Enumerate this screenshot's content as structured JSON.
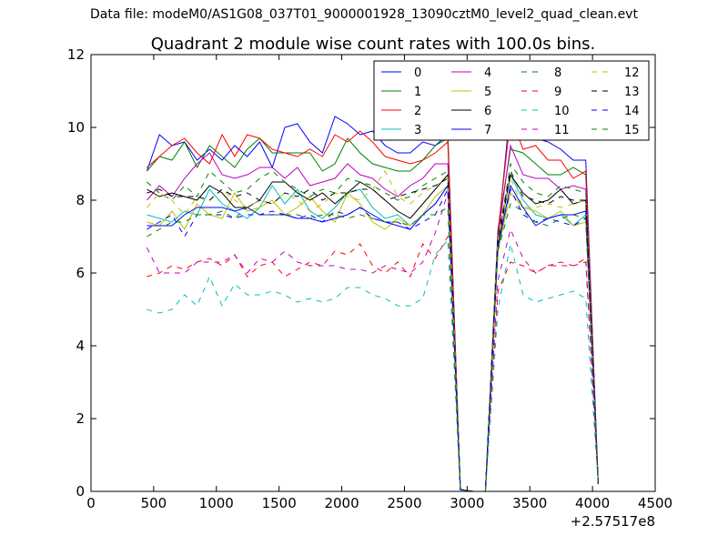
{
  "suptitle": "Data file: modeM0/AS1G08_037T01_9000001928_13090cztM0_level2_quad_clean.evt",
  "chart_data": {
    "type": "line",
    "title": "Quadrant 2 module wise count rates with 100.0s bins.",
    "xlabel": "",
    "ylabel": "",
    "x_offset_label": "+2.57517e8",
    "xlim": [
      0,
      4500
    ],
    "ylim": [
      0,
      12
    ],
    "xticks": [
      0,
      500,
      1000,
      1500,
      2000,
      2500,
      3000,
      3500,
      4000,
      4500
    ],
    "yticks": [
      0,
      2,
      4,
      6,
      8,
      10,
      12
    ],
    "grid": false,
    "legend_position": "top-right",
    "legend_columns": 4,
    "x": [
      446,
      546,
      646,
      746,
      846,
      946,
      1046,
      1146,
      1246,
      1346,
      1446,
      1546,
      1646,
      1746,
      1846,
      1946,
      2046,
      2146,
      2246,
      2346,
      2446,
      2546,
      2646,
      2746,
      2846,
      2946,
      3046,
      3146,
      3246,
      3346,
      3446,
      3546,
      3646,
      3746,
      3846,
      3946,
      4046
    ],
    "series": [
      {
        "name": "0",
        "color": "#0000ff",
        "style": "solid",
        "values": [
          8.8,
          9.8,
          9.5,
          9.6,
          9.1,
          9.4,
          9.1,
          9.5,
          9.2,
          9.6,
          8.9,
          10.0,
          10.1,
          9.6,
          9.3,
          10.3,
          10.1,
          9.8,
          9.9,
          9.5,
          9.3,
          9.3,
          9.6,
          9.5,
          9.8,
          0.05,
          0.0,
          0.0,
          7.0,
          10.6,
          10.3,
          9.7,
          9.6,
          9.4,
          9.1,
          9.1,
          0.2
        ]
      },
      {
        "name": "1",
        "color": "#008000",
        "style": "solid",
        "values": [
          8.8,
          9.2,
          9.1,
          9.6,
          8.9,
          9.5,
          9.2,
          8.9,
          9.4,
          9.7,
          9.3,
          9.3,
          9.3,
          9.3,
          8.8,
          9.0,
          9.7,
          9.3,
          9.0,
          8.9,
          8.8,
          8.8,
          9.1,
          9.5,
          9.7,
          0.05,
          0.0,
          0.0,
          7.2,
          9.4,
          9.3,
          9.0,
          8.7,
          8.7,
          8.9,
          8.7,
          0.2
        ]
      },
      {
        "name": "2",
        "color": "#ff0000",
        "style": "solid",
        "values": [
          8.9,
          9.2,
          9.5,
          9.7,
          9.3,
          9.0,
          9.8,
          9.2,
          9.8,
          9.7,
          9.4,
          9.3,
          9.2,
          9.4,
          9.2,
          9.8,
          9.6,
          9.9,
          9.6,
          9.2,
          9.1,
          9.0,
          9.1,
          9.3,
          9.6,
          0.05,
          0.0,
          0.0,
          7.1,
          10.3,
          9.4,
          9.5,
          9.1,
          9.1,
          8.6,
          8.8,
          0.2
        ]
      },
      {
        "name": "3",
        "color": "#00bfbf",
        "style": "solid",
        "values": [
          7.6,
          7.5,
          7.4,
          7.7,
          7.6,
          8.3,
          7.9,
          7.7,
          7.5,
          7.8,
          8.4,
          7.9,
          8.3,
          7.7,
          7.5,
          7.8,
          8.2,
          8.3,
          7.8,
          7.5,
          7.6,
          7.3,
          7.6,
          7.9,
          8.4,
          0.05,
          0.0,
          0.0,
          6.8,
          8.7,
          8.0,
          7.6,
          7.5,
          7.6,
          7.3,
          7.6,
          0.2
        ]
      },
      {
        "name": "4",
        "color": "#bf00bf",
        "style": "solid",
        "values": [
          8.0,
          8.4,
          8.1,
          8.6,
          9.0,
          9.3,
          8.7,
          8.6,
          8.7,
          8.9,
          8.9,
          8.6,
          8.9,
          8.4,
          8.5,
          8.6,
          9.0,
          8.7,
          8.6,
          8.3,
          8.1,
          8.4,
          8.6,
          9.0,
          9.0,
          0.05,
          0.0,
          0.0,
          7.0,
          9.5,
          8.7,
          8.6,
          8.6,
          8.3,
          8.4,
          8.3,
          0.2
        ]
      },
      {
        "name": "5",
        "color": "#bfbf00",
        "style": "solid",
        "values": [
          7.4,
          7.3,
          7.7,
          7.2,
          7.9,
          7.6,
          7.5,
          8.2,
          7.7,
          7.8,
          8.0,
          7.6,
          7.8,
          8.1,
          7.7,
          7.4,
          8.2,
          7.9,
          7.4,
          7.2,
          7.5,
          7.3,
          7.6,
          8.1,
          8.4,
          0.05,
          0.0,
          0.0,
          6.6,
          8.2,
          7.8,
          7.7,
          7.5,
          7.7,
          7.3,
          7.4,
          0.2
        ]
      },
      {
        "name": "6",
        "color": "#000000",
        "style": "solid",
        "values": [
          8.3,
          8.1,
          8.2,
          8.1,
          8.0,
          8.4,
          8.2,
          7.8,
          7.8,
          8.0,
          8.5,
          8.5,
          8.2,
          8.0,
          8.2,
          7.9,
          8.2,
          8.5,
          8.3,
          8.0,
          7.7,
          7.5,
          7.9,
          8.3,
          8.7,
          0.05,
          0.0,
          0.0,
          6.8,
          8.7,
          8.2,
          7.9,
          8.0,
          8.3,
          7.9,
          8.0,
          0.2
        ]
      },
      {
        "name": "7",
        "color": "#0000ff",
        "style": "solid",
        "values": [
          7.3,
          7.3,
          7.3,
          7.6,
          7.8,
          7.8,
          7.8,
          7.7,
          7.8,
          7.6,
          7.6,
          7.6,
          7.5,
          7.5,
          7.4,
          7.5,
          7.6,
          7.8,
          7.6,
          7.4,
          7.3,
          7.2,
          7.6,
          7.9,
          8.4,
          0.05,
          0.0,
          0.0,
          6.7,
          8.4,
          7.8,
          7.3,
          7.5,
          7.6,
          7.6,
          7.7,
          0.2
        ]
      },
      {
        "name": "8",
        "color": "#008000",
        "style": "dashed",
        "values": [
          8.5,
          8.2,
          8.0,
          8.4,
          8.1,
          8.8,
          8.5,
          8.2,
          8.3,
          8.6,
          8.8,
          8.5,
          8.3,
          8.1,
          8.3,
          8.2,
          8.6,
          8.5,
          8.4,
          8.2,
          8.0,
          8.1,
          8.4,
          8.6,
          8.8,
          0.05,
          0.0,
          0.0,
          6.8,
          9.0,
          8.5,
          8.2,
          8.1,
          8.4,
          8.3,
          8.2,
          0.2
        ]
      },
      {
        "name": "9",
        "color": "#ff0000",
        "style": "dashed",
        "values": [
          5.9,
          6.0,
          6.2,
          6.1,
          6.3,
          6.4,
          6.2,
          6.5,
          5.9,
          6.2,
          6.3,
          5.9,
          6.1,
          6.3,
          6.2,
          6.6,
          6.5,
          6.8,
          6.2,
          6.0,
          6.3,
          5.9,
          6.8,
          6.4,
          7.0,
          0.05,
          0.0,
          0.0,
          5.5,
          6.3,
          6.2,
          6.0,
          6.2,
          6.3,
          6.2,
          6.4,
          0.2
        ]
      },
      {
        "name": "10",
        "color": "#00bfbf",
        "style": "dashed",
        "values": [
          5.0,
          4.9,
          5.0,
          5.4,
          5.1,
          5.9,
          5.1,
          5.7,
          5.4,
          5.4,
          5.5,
          5.4,
          5.2,
          5.3,
          5.2,
          5.3,
          5.6,
          5.6,
          5.4,
          5.3,
          5.1,
          5.1,
          5.3,
          6.5,
          6.9,
          0.05,
          0.0,
          0.0,
          5.0,
          6.8,
          5.4,
          5.2,
          5.3,
          5.4,
          5.5,
          5.3,
          0.2
        ]
      },
      {
        "name": "11",
        "color": "#bf00bf",
        "style": "dashed",
        "values": [
          6.7,
          6.0,
          6.0,
          6.0,
          6.3,
          6.3,
          6.3,
          6.5,
          6.0,
          6.4,
          6.3,
          6.6,
          6.3,
          6.2,
          6.2,
          6.2,
          6.1,
          6.1,
          6.0,
          6.2,
          6.1,
          6.0,
          6.3,
          7.1,
          8.2,
          0.05,
          0.0,
          0.0,
          5.8,
          7.2,
          6.4,
          6.0,
          6.2,
          6.2,
          6.2,
          6.3,
          0.2
        ]
      },
      {
        "name": "12",
        "color": "#bfbf00",
        "style": "dashed",
        "values": [
          7.8,
          8.2,
          8.0,
          7.6,
          8.1,
          8.0,
          8.3,
          8.0,
          7.8,
          8.0,
          7.9,
          8.2,
          8.0,
          7.7,
          7.9,
          8.2,
          8.1,
          8.0,
          8.3,
          8.8,
          8.1,
          7.9,
          8.2,
          8.4,
          8.6,
          0.05,
          0.0,
          0.0,
          6.9,
          8.6,
          7.8,
          7.8,
          7.9,
          7.8,
          7.9,
          8.0,
          0.2
        ]
      },
      {
        "name": "13",
        "color": "#000000",
        "style": "dashed",
        "values": [
          8.2,
          8.3,
          8.1,
          8.1,
          8.1,
          8.0,
          8.3,
          8.1,
          8.2,
          8.0,
          7.9,
          8.2,
          8.1,
          8.3,
          8.0,
          8.2,
          8.2,
          8.3,
          8.3,
          8.0,
          8.1,
          8.2,
          8.3,
          8.4,
          8.6,
          0.05,
          0.0,
          0.0,
          7.0,
          8.8,
          8.1,
          8.0,
          7.9,
          8.1,
          8.0,
          8.0,
          0.2
        ]
      },
      {
        "name": "14",
        "color": "#0000ff",
        "style": "dashed",
        "values": [
          7.2,
          7.4,
          7.6,
          7.0,
          7.6,
          7.6,
          7.6,
          7.5,
          7.6,
          7.6,
          7.7,
          7.6,
          7.5,
          7.6,
          7.4,
          7.7,
          7.6,
          7.8,
          7.5,
          7.4,
          7.4,
          7.2,
          7.4,
          7.6,
          8.3,
          0.05,
          0.0,
          0.0,
          6.8,
          8.3,
          7.6,
          7.4,
          7.5,
          7.4,
          7.3,
          7.5,
          0.2
        ]
      },
      {
        "name": "15",
        "color": "#008000",
        "style": "dashed",
        "values": [
          7.0,
          7.2,
          7.4,
          7.4,
          7.6,
          7.6,
          7.7,
          7.5,
          7.8,
          7.6,
          7.6,
          7.6,
          7.6,
          7.5,
          7.6,
          7.6,
          7.5,
          7.6,
          7.5,
          7.4,
          7.4,
          7.3,
          7.6,
          7.6,
          7.8,
          0.05,
          0.0,
          0.0,
          6.6,
          7.9,
          7.7,
          7.4,
          7.3,
          7.5,
          7.6,
          7.5,
          0.2
        ]
      }
    ]
  }
}
